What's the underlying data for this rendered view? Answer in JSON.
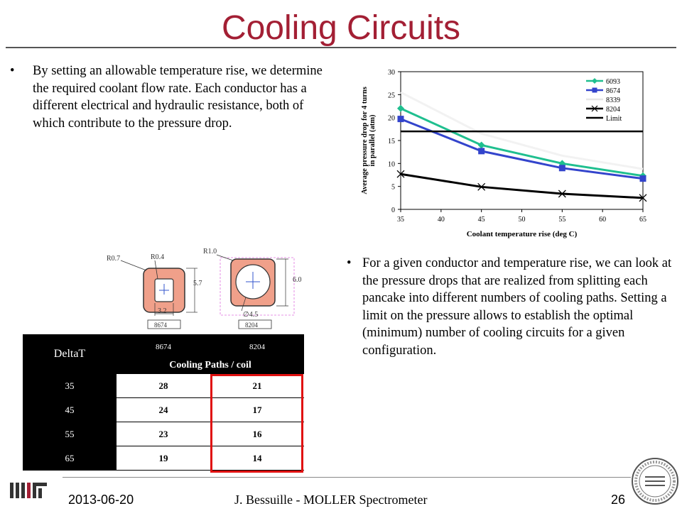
{
  "slide": {
    "title": "Cooling Circuits",
    "bullets": [
      "By setting an allowable temperature rise, we determine the required coolant flow rate. Each conductor has a different electrical and hydraulic resistance, both of which contribute to the pressure drop.",
      "For a given conductor and temperature rise, we can look at the pressure drops that are realized from splitting each pancake into different numbers of cooling paths. Setting a limit on the pressure allows to establish the optimal (minimum) number of cooling circuits for a given configuration."
    ],
    "bullet_mark": "•"
  },
  "chart_data": {
    "type": "line",
    "x": [
      35,
      45,
      55,
      65
    ],
    "series": [
      {
        "name": "6093",
        "values": [
          22,
          14,
          10,
          7.3
        ],
        "color": "#1fbf8f",
        "marker": "diamond"
      },
      {
        "name": "8674",
        "values": [
          19.7,
          12.7,
          9,
          6.7
        ],
        "color": "#3344cc",
        "marker": "square"
      },
      {
        "name": "8339",
        "values": [
          25.5,
          16.5,
          11.7,
          8.8
        ],
        "color": "#f2f2f2",
        "marker": "none"
      },
      {
        "name": "8204",
        "values": [
          7.7,
          4.9,
          3.4,
          2.5
        ],
        "color": "#000000",
        "marker": "x"
      },
      {
        "name": "Limit",
        "values": [
          17,
          17,
          17,
          17
        ],
        "color": "#000000",
        "marker": "none"
      }
    ],
    "xlabel": "Coolant temperature rise (deg C)",
    "ylabel_lines": [
      "Average pressure drop for 4 turns",
      "in parallel (atm)"
    ],
    "xlim": [
      35,
      65
    ],
    "ylim": [
      0,
      30
    ],
    "xticks": [
      "35",
      "40",
      "45",
      "50",
      "55",
      "60",
      "65"
    ],
    "yticks": [
      "0",
      "5",
      "10",
      "15",
      "20",
      "25",
      "30"
    ],
    "legend_position": "top-right",
    "grid": false
  },
  "drawings": {
    "left": {
      "r_outer": "R0.7",
      "r_inner": "R0.4",
      "height": "5.7",
      "width": "3.2",
      "label": "8674"
    },
    "right": {
      "r_outer": "R1.0",
      "height": "6.0",
      "diameter": "∅4.5",
      "label": "8204"
    }
  },
  "table": {
    "deltat_header": "DeltaT",
    "col_headers": [
      "8674",
      "8204"
    ],
    "span_header": "Cooling Paths / coil",
    "rows": [
      {
        "deltat": "35",
        "c8674": "28",
        "c8204": "21"
      },
      {
        "deltat": "45",
        "c8674": "24",
        "c8204": "17"
      },
      {
        "deltat": "55",
        "c8674": "23",
        "c8204": "16"
      },
      {
        "deltat": "65",
        "c8674": "19",
        "c8204": "14"
      }
    ]
  },
  "footer": {
    "date": "2013-06-20",
    "center": "J. Bessuille - MOLLER Spectrometer",
    "page": "26"
  }
}
